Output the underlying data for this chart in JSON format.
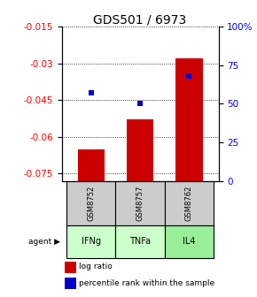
{
  "title": "GDS501 / 6973",
  "samples": [
    "GSM8752",
    "GSM8757",
    "GSM8762"
  ],
  "agents": [
    "IFNg",
    "TNFa",
    "IL4"
  ],
  "log_ratios": [
    -0.065,
    -0.053,
    -0.028
  ],
  "percentile_ranks": [
    57,
    50,
    68
  ],
  "ylim_left": [
    -0.078,
    -0.015
  ],
  "ylim_right": [
    0,
    100
  ],
  "yticks_left": [
    -0.075,
    -0.06,
    -0.045,
    -0.03,
    -0.015
  ],
  "yticks_right": [
    0,
    25,
    50,
    75,
    100
  ],
  "bar_color": "#cc0000",
  "percentile_color": "#0000cc",
  "agent_colors": [
    "#ccffcc",
    "#ccffcc",
    "#99ee99"
  ],
  "sample_bg_color": "#cccccc",
  "legend_bar_color": "#cc0000",
  "legend_pct_color": "#0000cc",
  "grid_color": "#000000",
  "title_fontsize": 10,
  "tick_fontsize": 7.5,
  "label_fontsize": 7
}
